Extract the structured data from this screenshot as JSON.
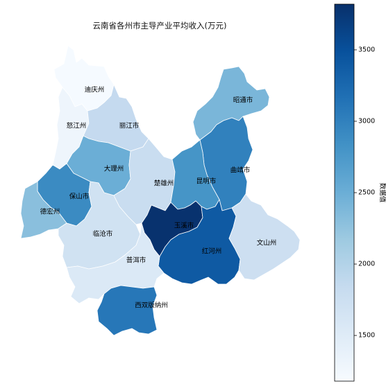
{
  "chart_data": {
    "type": "choropleth",
    "title": "云南省各州市主导产业平均收入(万元)",
    "colorbar": {
      "label": "数据值",
      "colormap": "Blues",
      "min": 1180,
      "max": 3820,
      "ticks": [
        1500,
        2000,
        2500,
        3000,
        3500
      ],
      "tick_labels": [
        "1500",
        "2000",
        "2500",
        "3000",
        "3500"
      ]
    },
    "regions": [
      {
        "name": "迪庆州",
        "value": 1200
      },
      {
        "name": "怒江州",
        "value": 1300
      },
      {
        "name": "丽江市",
        "value": 1850
      },
      {
        "name": "昭通市",
        "value": 2400
      },
      {
        "name": "大理州",
        "value": 2500
      },
      {
        "name": "楚雄州",
        "value": 1800
      },
      {
        "name": "昆明市",
        "value": 2800
      },
      {
        "name": "曲靖市",
        "value": 3000
      },
      {
        "name": "保山市",
        "value": 2900
      },
      {
        "name": "德宏州",
        "value": 2300
      },
      {
        "name": "临沧市",
        "value": 1700
      },
      {
        "name": "玉溪市",
        "value": 3800
      },
      {
        "name": "红河州",
        "value": 3400
      },
      {
        "name": "文山州",
        "value": 1750
      },
      {
        "name": "普洱市",
        "value": 1550
      },
      {
        "name": "西双版纳州",
        "value": 3100
      }
    ]
  }
}
